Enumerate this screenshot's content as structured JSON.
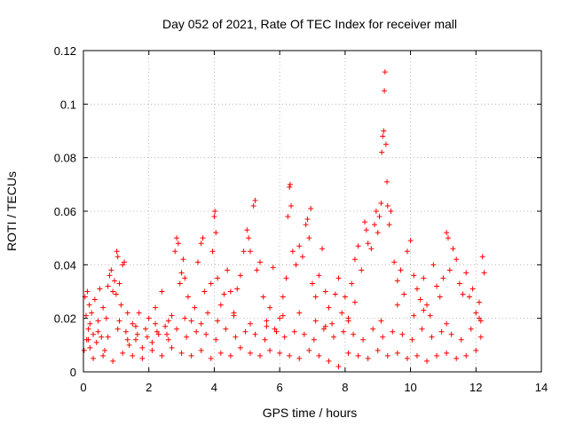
{
  "chart_data": {
    "type": "scatter",
    "title": "Day 052 of 2021, Rate Of TEC Index for receiver mall",
    "xlabel": "GPS time / hours",
    "ylabel": "ROTI / TECUs",
    "xlim": [
      0,
      14
    ],
    "ylim": [
      0,
      0.12
    ],
    "xticks": [
      0,
      2,
      4,
      6,
      8,
      10,
      12,
      14
    ],
    "xtick_labels": [
      "0",
      "2",
      "4",
      "6",
      "8",
      "10",
      "12",
      "14"
    ],
    "yticks": [
      0,
      0.02,
      0.04,
      0.06,
      0.08,
      0.1,
      0.12
    ],
    "ytick_labels": [
      "0",
      "0.02",
      "0.04",
      "0.06",
      "0.08",
      "0.1",
      "0.12"
    ],
    "grid": true,
    "marker": "+",
    "color": "#ff0000",
    "series": [
      {
        "points": [
          [
            0.02,
            0.008
          ],
          [
            0.05,
            0.028
          ],
          [
            0.08,
            0.021
          ],
          [
            0.1,
            0.012
          ],
          [
            0.12,
            0.03
          ],
          [
            0.15,
            0.016
          ],
          [
            0.18,
            0.025
          ],
          [
            0.2,
            0.009
          ],
          [
            0.25,
            0.022
          ],
          [
            0.3,
            0.014
          ],
          [
            0.35,
            0.027
          ],
          [
            0.4,
            0.011
          ],
          [
            0.45,
            0.019
          ],
          [
            0.5,
            0.031
          ],
          [
            0.55,
            0.013
          ],
          [
            0.6,
            0.024
          ],
          [
            0.65,
            0.008
          ],
          [
            0.7,
            0.02
          ],
          [
            0.75,
            0.032
          ],
          [
            0.8,
            0.036
          ],
          [
            0.85,
            0.038
          ],
          [
            0.9,
            0.03
          ],
          [
            0.95,
            0.034
          ],
          [
            1.0,
            0.029
          ],
          [
            1.02,
            0.045
          ],
          [
            1.05,
            0.043
          ],
          [
            1.1,
            0.033
          ],
          [
            1.15,
            0.025
          ],
          [
            1.2,
            0.04
          ],
          [
            1.25,
            0.041
          ],
          [
            1.3,
            0.015
          ],
          [
            1.35,
            0.022
          ],
          [
            1.4,
            0.01
          ],
          [
            1.5,
            0.018
          ],
          [
            1.6,
            0.012
          ],
          [
            1.7,
            0.022
          ],
          [
            1.8,
            0.009
          ],
          [
            1.9,
            0.016
          ],
          [
            2.0,
            0.02
          ],
          [
            2.1,
            0.011
          ],
          [
            2.2,
            0.024
          ],
          [
            2.3,
            0.014
          ],
          [
            2.4,
            0.03
          ],
          [
            2.5,
            0.017
          ],
          [
            2.6,
            0.012
          ],
          [
            2.7,
            0.021
          ],
          [
            2.8,
            0.045
          ],
          [
            2.85,
            0.05
          ],
          [
            2.9,
            0.048
          ],
          [
            2.95,
            0.033
          ],
          [
            3.0,
            0.037
          ],
          [
            3.05,
            0.042
          ],
          [
            3.1,
            0.035
          ],
          [
            3.2,
            0.028
          ],
          [
            3.3,
            0.019
          ],
          [
            3.4,
            0.024
          ],
          [
            3.5,
            0.041
          ],
          [
            3.6,
            0.048
          ],
          [
            3.65,
            0.05
          ],
          [
            3.7,
            0.03
          ],
          [
            3.8,
            0.022
          ],
          [
            3.9,
            0.033
          ],
          [
            3.95,
            0.045
          ],
          [
            4.0,
            0.058
          ],
          [
            4.02,
            0.06
          ],
          [
            4.05,
            0.052
          ],
          [
            4.1,
            0.035
          ],
          [
            4.2,
            0.025
          ],
          [
            4.3,
            0.029
          ],
          [
            4.4,
            0.038
          ],
          [
            4.5,
            0.03
          ],
          [
            4.6,
            0.022
          ],
          [
            4.7,
            0.031
          ],
          [
            4.8,
            0.036
          ],
          [
            4.9,
            0.045
          ],
          [
            5.0,
            0.053
          ],
          [
            5.05,
            0.05
          ],
          [
            5.1,
            0.045
          ],
          [
            5.2,
            0.062
          ],
          [
            5.25,
            0.064
          ],
          [
            5.3,
            0.038
          ],
          [
            5.4,
            0.041
          ],
          [
            5.5,
            0.028
          ],
          [
            5.6,
            0.019
          ],
          [
            5.7,
            0.024
          ],
          [
            5.8,
            0.039
          ],
          [
            5.9,
            0.015
          ],
          [
            6.0,
            0.02
          ],
          [
            6.1,
            0.028
          ],
          [
            6.2,
            0.035
          ],
          [
            6.25,
            0.058
          ],
          [
            6.3,
            0.069
          ],
          [
            6.32,
            0.07
          ],
          [
            6.35,
            0.062
          ],
          [
            6.4,
            0.045
          ],
          [
            6.5,
            0.04
          ],
          [
            6.6,
            0.047
          ],
          [
            6.7,
            0.043
          ],
          [
            6.8,
            0.055
          ],
          [
            6.85,
            0.057
          ],
          [
            6.9,
            0.05
          ],
          [
            6.95,
            0.061
          ],
          [
            7.0,
            0.033
          ],
          [
            7.1,
            0.028
          ],
          [
            7.2,
            0.036
          ],
          [
            7.3,
            0.046
          ],
          [
            7.4,
            0.03
          ],
          [
            7.5,
            0.024
          ],
          [
            7.6,
            0.018
          ],
          [
            7.7,
            0.029
          ],
          [
            7.8,
            0.035
          ],
          [
            7.9,
            0.022
          ],
          [
            8.0,
            0.028
          ],
          [
            8.1,
            0.019
          ],
          [
            8.2,
            0.033
          ],
          [
            8.3,
            0.042
          ],
          [
            8.4,
            0.047
          ],
          [
            8.5,
            0.038
          ],
          [
            8.6,
            0.056
          ],
          [
            8.65,
            0.053
          ],
          [
            8.7,
            0.048
          ],
          [
            8.8,
            0.046
          ],
          [
            8.9,
            0.055
          ],
          [
            8.95,
            0.06
          ],
          [
            9.0,
            0.052
          ],
          [
            9.05,
            0.058
          ],
          [
            9.1,
            0.063
          ],
          [
            9.12,
            0.082
          ],
          [
            9.15,
            0.088
          ],
          [
            9.18,
            0.09
          ],
          [
            9.2,
            0.105
          ],
          [
            9.22,
            0.112
          ],
          [
            9.25,
            0.085
          ],
          [
            9.28,
            0.071
          ],
          [
            9.3,
            0.062
          ],
          [
            9.35,
            0.055
          ],
          [
            9.4,
            0.06
          ],
          [
            9.5,
            0.041
          ],
          [
            9.6,
            0.034
          ],
          [
            9.7,
            0.038
          ],
          [
            9.8,
            0.029
          ],
          [
            9.9,
            0.045
          ],
          [
            10.0,
            0.049
          ],
          [
            10.1,
            0.036
          ],
          [
            10.2,
            0.031
          ],
          [
            10.3,
            0.027
          ],
          [
            10.4,
            0.035
          ],
          [
            10.5,
            0.025
          ],
          [
            10.6,
            0.021
          ],
          [
            10.7,
            0.04
          ],
          [
            10.8,
            0.032
          ],
          [
            10.9,
            0.028
          ],
          [
            11.0,
            0.035
          ],
          [
            11.1,
            0.052
          ],
          [
            11.15,
            0.05
          ],
          [
            11.2,
            0.038
          ],
          [
            11.3,
            0.046
          ],
          [
            11.4,
            0.042
          ],
          [
            11.5,
            0.033
          ],
          [
            11.6,
            0.029
          ],
          [
            11.7,
            0.037
          ],
          [
            11.8,
            0.028
          ],
          [
            11.9,
            0.031
          ],
          [
            12.0,
            0.022
          ],
          [
            12.1,
            0.026
          ],
          [
            12.15,
            0.019
          ],
          [
            12.2,
            0.043
          ],
          [
            12.25,
            0.037
          ],
          [
            0.3,
            0.005
          ],
          [
            0.6,
            0.006
          ],
          [
            0.9,
            0.004
          ],
          [
            1.2,
            0.007
          ],
          [
            1.5,
            0.006
          ],
          [
            1.8,
            0.005
          ],
          [
            2.1,
            0.008
          ],
          [
            2.4,
            0.006
          ],
          [
            2.7,
            0.009
          ],
          [
            3.0,
            0.007
          ],
          [
            3.3,
            0.006
          ],
          [
            3.6,
            0.008
          ],
          [
            3.9,
            0.005
          ],
          [
            4.2,
            0.007
          ],
          [
            4.5,
            0.006
          ],
          [
            4.8,
            0.009
          ],
          [
            5.1,
            0.007
          ],
          [
            5.4,
            0.006
          ],
          [
            5.7,
            0.008
          ],
          [
            6.0,
            0.007
          ],
          [
            6.3,
            0.006
          ],
          [
            6.6,
            0.005
          ],
          [
            6.9,
            0.008
          ],
          [
            7.2,
            0.006
          ],
          [
            7.5,
            0.004
          ],
          [
            7.8,
            0.002
          ],
          [
            8.1,
            0.007
          ],
          [
            8.4,
            0.006
          ],
          [
            8.7,
            0.005
          ],
          [
            9.0,
            0.008
          ],
          [
            9.3,
            0.006
          ],
          [
            9.6,
            0.007
          ],
          [
            9.9,
            0.005
          ],
          [
            10.2,
            0.006
          ],
          [
            10.5,
            0.004
          ],
          [
            10.8,
            0.006
          ],
          [
            11.1,
            0.007
          ],
          [
            11.4,
            0.005
          ],
          [
            11.7,
            0.006
          ],
          [
            12.0,
            0.008
          ],
          [
            0.15,
            0.012
          ],
          [
            0.45,
            0.015
          ],
          [
            0.75,
            0.013
          ],
          [
            1.05,
            0.016
          ],
          [
            1.35,
            0.012
          ],
          [
            1.65,
            0.014
          ],
          [
            1.95,
            0.013
          ],
          [
            2.25,
            0.015
          ],
          [
            2.55,
            0.014
          ],
          [
            2.85,
            0.016
          ],
          [
            3.15,
            0.013
          ],
          [
            3.45,
            0.015
          ],
          [
            3.75,
            0.014
          ],
          [
            4.05,
            0.012
          ],
          [
            4.35,
            0.016
          ],
          [
            4.65,
            0.013
          ],
          [
            4.95,
            0.015
          ],
          [
            5.25,
            0.014
          ],
          [
            5.55,
            0.012
          ],
          [
            5.85,
            0.016
          ],
          [
            6.15,
            0.013
          ],
          [
            6.45,
            0.015
          ],
          [
            6.75,
            0.014
          ],
          [
            7.05,
            0.012
          ],
          [
            7.35,
            0.016
          ],
          [
            7.65,
            0.013
          ],
          [
            7.95,
            0.015
          ],
          [
            8.25,
            0.014
          ],
          [
            8.55,
            0.012
          ],
          [
            8.85,
            0.016
          ],
          [
            9.15,
            0.013
          ],
          [
            9.45,
            0.015
          ],
          [
            9.75,
            0.014
          ],
          [
            10.05,
            0.012
          ],
          [
            10.35,
            0.016
          ],
          [
            10.65,
            0.013
          ],
          [
            10.95,
            0.015
          ],
          [
            11.25,
            0.014
          ],
          [
            11.55,
            0.012
          ],
          [
            11.85,
            0.016
          ],
          [
            12.15,
            0.013
          ],
          [
            0.2,
            0.018
          ],
          [
            1.1,
            0.019
          ],
          [
            2.2,
            0.018
          ],
          [
            3.1,
            0.02
          ],
          [
            4.1,
            0.019
          ],
          [
            5.1,
            0.018
          ],
          [
            6.1,
            0.021
          ],
          [
            7.1,
            0.019
          ],
          [
            8.1,
            0.02
          ],
          [
            9.1,
            0.019
          ],
          [
            10.1,
            0.021
          ],
          [
            11.1,
            0.018
          ],
          [
            12.1,
            0.02
          ],
          [
            9.6,
            0.025
          ],
          [
            10.4,
            0.023
          ],
          [
            8.3,
            0.026
          ],
          [
            7.4,
            0.017
          ],
          [
            6.6,
            0.022
          ],
          [
            5.6,
            0.017
          ],
          [
            4.6,
            0.021
          ],
          [
            3.6,
            0.018
          ],
          [
            2.6,
            0.019
          ],
          [
            1.6,
            0.017
          ]
        ]
      }
    ]
  }
}
